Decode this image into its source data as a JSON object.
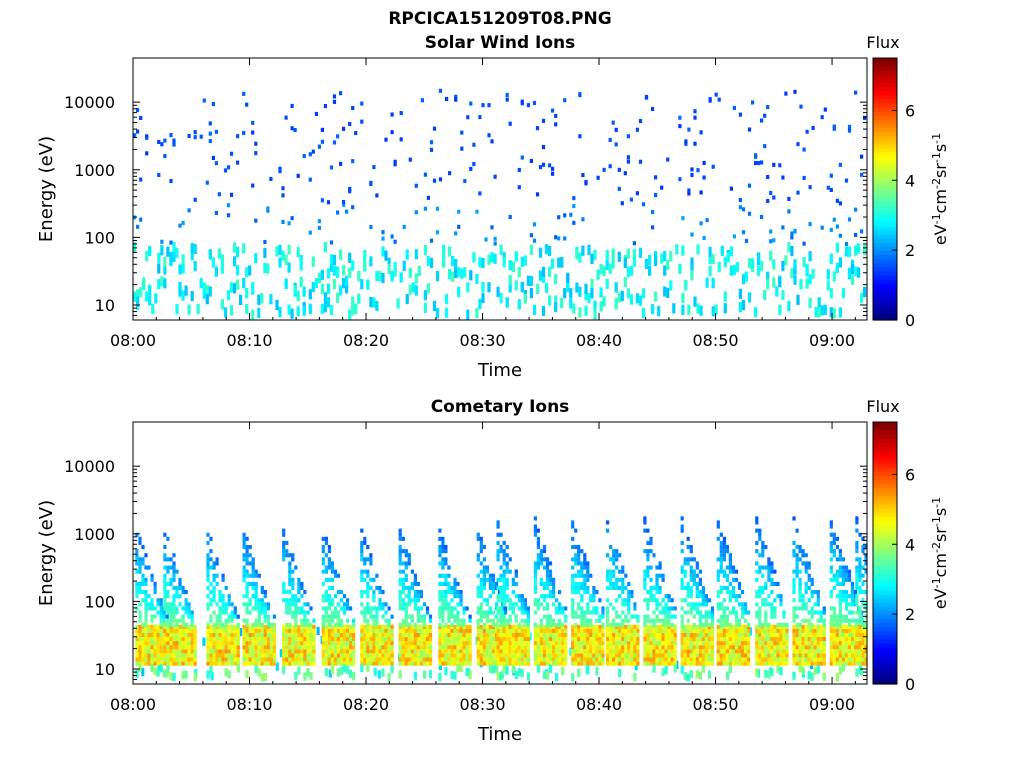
{
  "figure_title": "RPCICA151209T08.PNG",
  "chart_data": [
    {
      "type": "heatmap",
      "title": "Solar Wind Ions",
      "xlabel": "Time",
      "ylabel": "Energy (eV)",
      "x_ticks": [
        "08:00",
        "08:10",
        "08:20",
        "08:30",
        "08:40",
        "08:50",
        "09:00"
      ],
      "x_range_minutes": [
        0,
        63
      ],
      "y_scale": "log",
      "y_ticks": [
        10,
        100,
        1000,
        10000
      ],
      "y_tick_labels": [
        "10",
        "100",
        "1000",
        "10000"
      ],
      "y_range": [
        6,
        45000
      ],
      "colorbar": {
        "label_top": "Flux",
        "label": "eV-1cm-2sr-1s-1",
        "ticks": [
          0,
          2,
          4,
          6
        ],
        "tick_labels": [
          "0",
          "2",
          "4",
          "6"
        ],
        "range": [
          0,
          7.5
        ],
        "colormap": "jet"
      },
      "pattern": "sparse"
    },
    {
      "type": "heatmap",
      "title": "Cometary Ions",
      "xlabel": "Time",
      "ylabel": "Energy (eV)",
      "x_ticks": [
        "08:00",
        "08:10",
        "08:20",
        "08:30",
        "08:40",
        "08:50",
        "09:00"
      ],
      "x_range_minutes": [
        0,
        63
      ],
      "y_scale": "log",
      "y_ticks": [
        10,
        100,
        1000,
        10000
      ],
      "y_tick_labels": [
        "10",
        "100",
        "1000",
        "10000"
      ],
      "y_range": [
        6,
        45000
      ],
      "colorbar": {
        "label_top": "Flux",
        "label": "eV-1cm-2sr-1s-1",
        "ticks": [
          0,
          2,
          4,
          6
        ],
        "tick_labels": [
          "0",
          "2",
          "4",
          "6"
        ],
        "range": [
          0,
          7.5
        ],
        "colormap": "jet"
      },
      "pattern": "bursts",
      "burst_start_minutes": [
        0.2,
        2.6,
        6.3,
        9.4,
        12.8,
        16.2,
        19.5,
        22.8,
        26.2,
        29.5,
        31.2,
        34.4,
        37.6,
        40.6,
        43.8,
        47.0,
        50.1,
        53.4,
        56.6,
        59.8,
        62.0
      ]
    }
  ]
}
